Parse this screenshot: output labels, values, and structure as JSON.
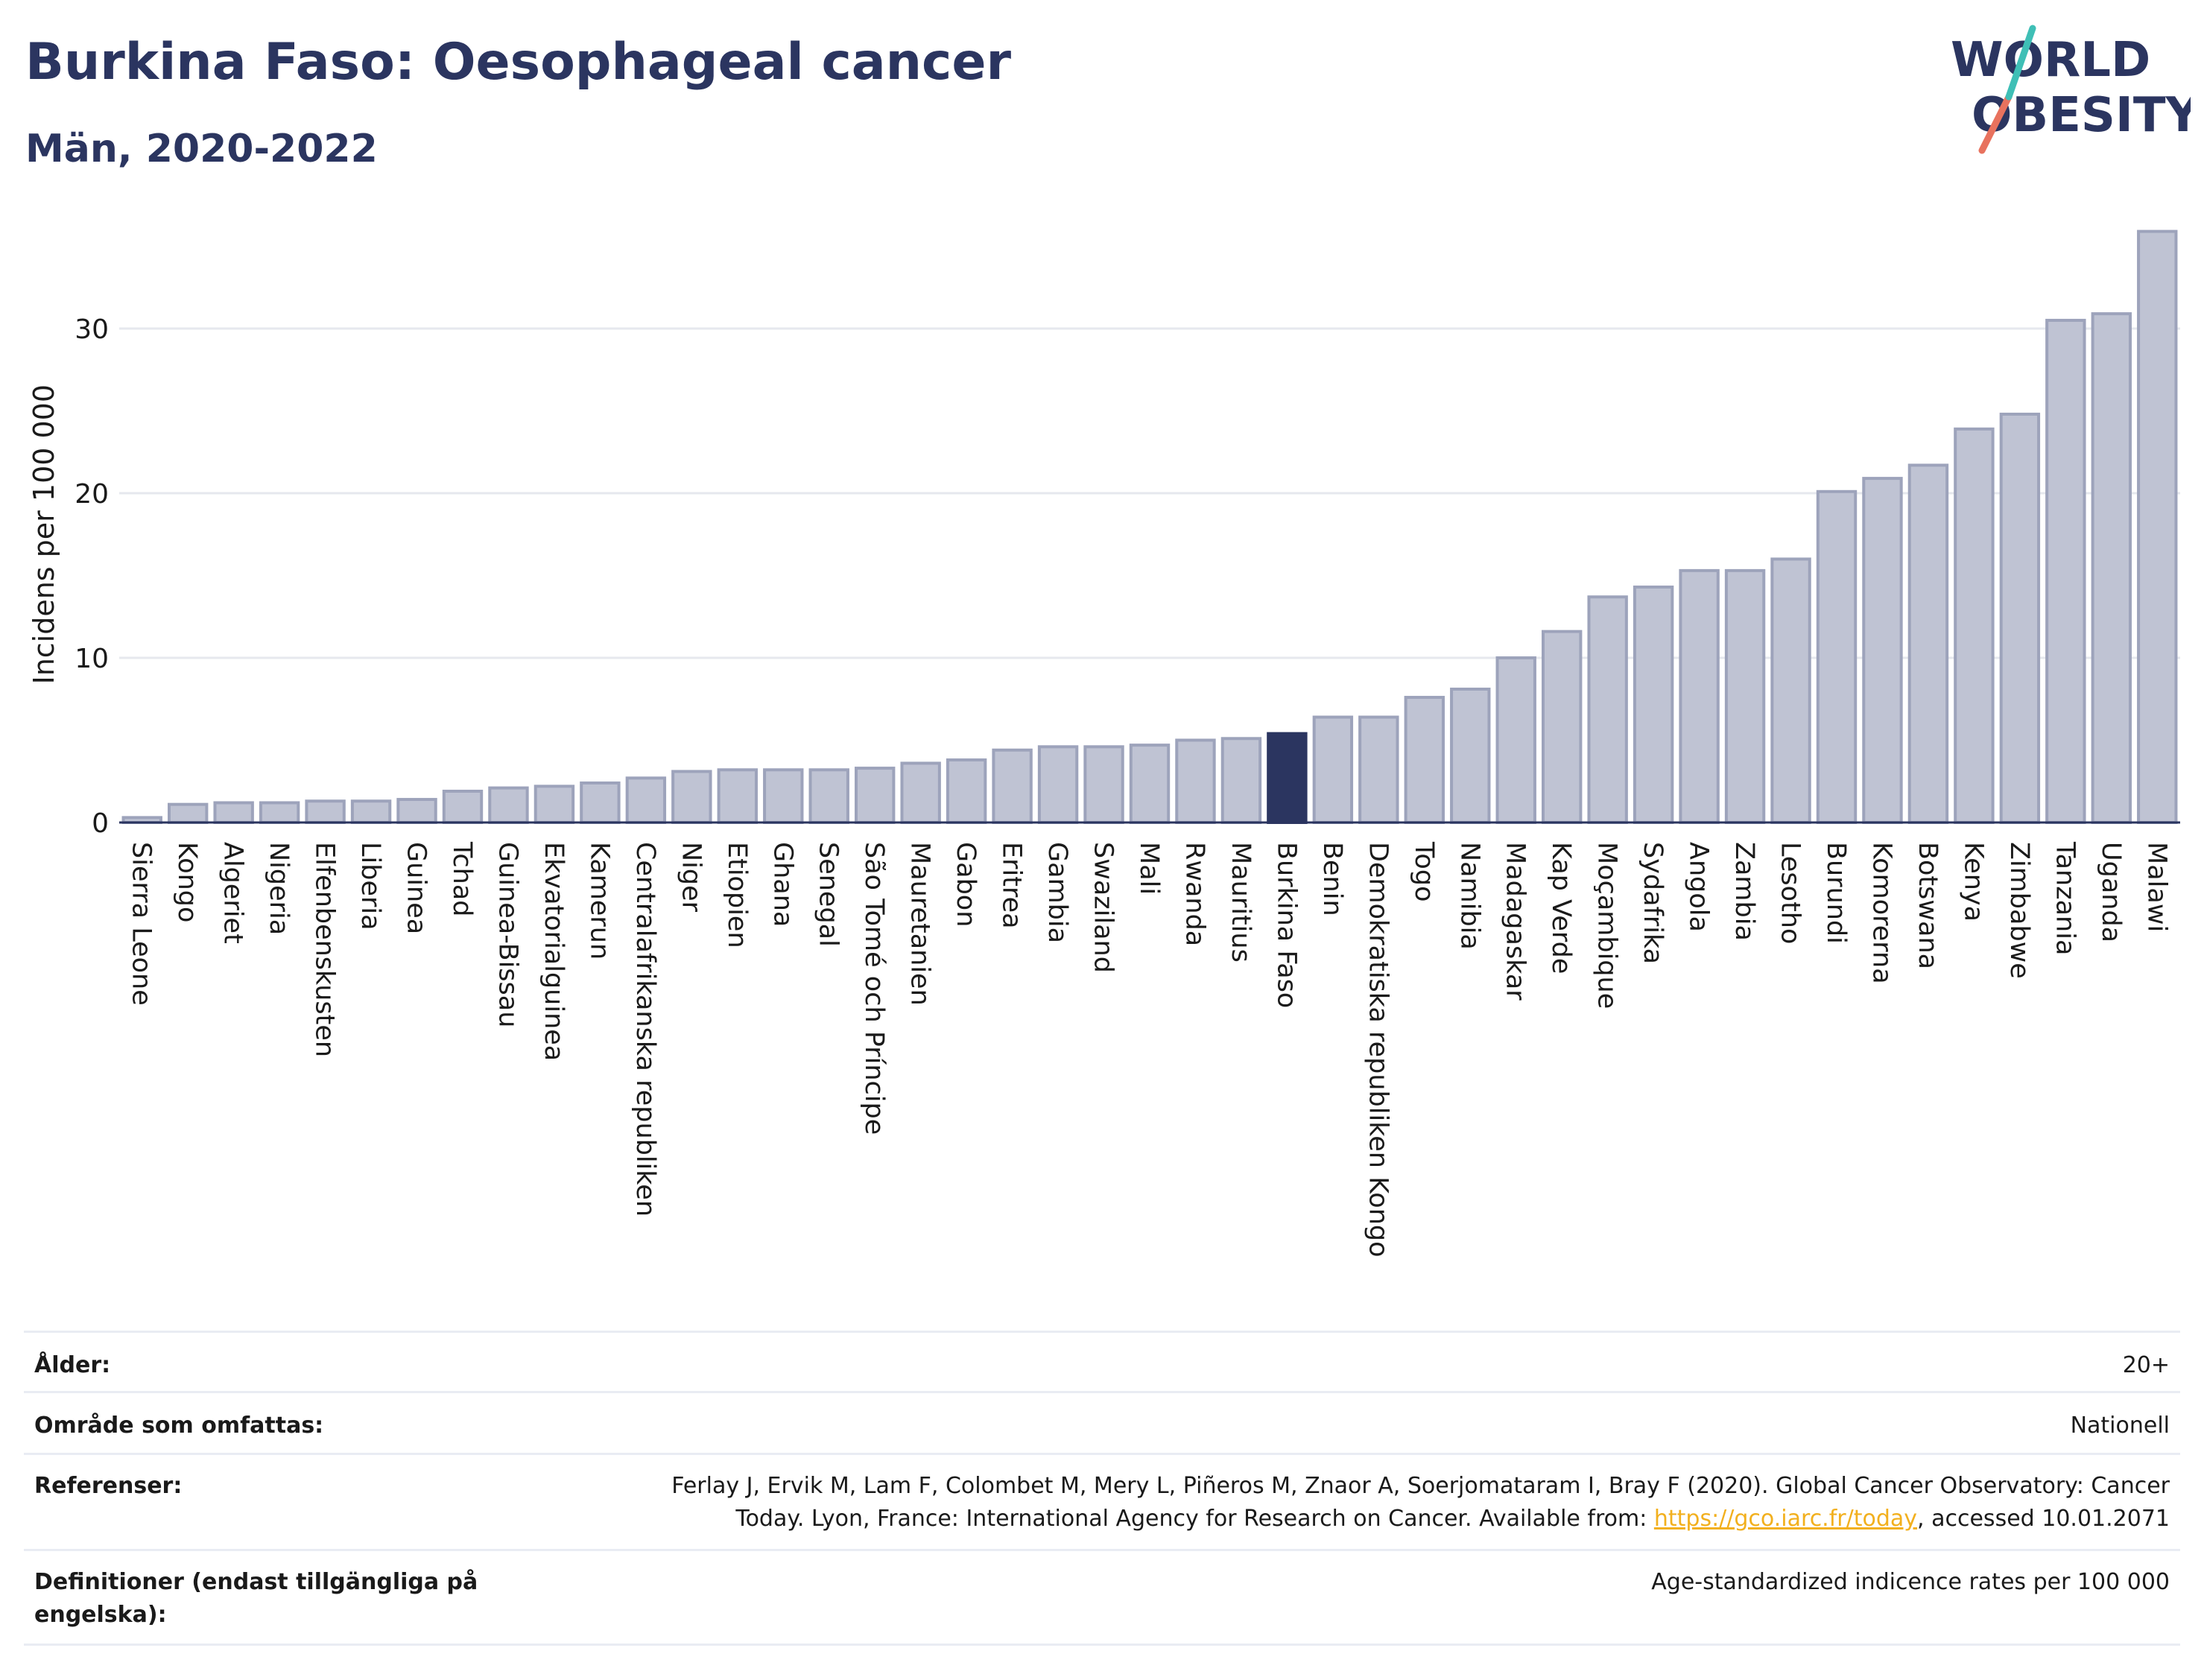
{
  "header": {
    "title": "Burkina Faso: Oesophageal cancer",
    "subtitle": "Män, 2020-2022"
  },
  "logo": {
    "line1": "WORLD",
    "line2": "OBESITY"
  },
  "colors": {
    "title": "#2b3560",
    "bar_default": "#bfc3d3",
    "bar_default_stroke": "#9da3bb",
    "bar_highlight": "#2b3560",
    "grid": "#e6e8ee",
    "logo_teal": "#3fbfb6",
    "logo_coral": "#e8725e",
    "link": "#f2b01e"
  },
  "chart_data": {
    "type": "bar",
    "title": "Burkina Faso: Oesophageal cancer",
    "subtitle": "Män, 2020-2022",
    "xlabel": "",
    "ylabel": "Incidens per 100 000",
    "ylim": [
      0,
      37
    ],
    "yticks": [
      0,
      10,
      20,
      30
    ],
    "grid": true,
    "highlight": "Burkina Faso",
    "categories": [
      "Sierra Leone",
      "Kongo",
      "Algeriet",
      "Nigeria",
      "Elfenbenskusten",
      "Liberia",
      "Guinea",
      "Tchad",
      "Guinea-Bissau",
      "Ekvatorialguinea",
      "Kamerun",
      "Centralafrikanska republiken",
      "Niger",
      "Etiopien",
      "Ghana",
      "Senegal",
      "São Tomé och Príncipe",
      "Mauretanien",
      "Gabon",
      "Eritrea",
      "Gambia",
      "Swaziland",
      "Mali",
      "Rwanda",
      "Mauritius",
      "Burkina Faso",
      "Benin",
      "Demokratiska republiken Kongo",
      "Togo",
      "Namibia",
      "Madagaskar",
      "Kap Verde",
      "Moçambique",
      "Sydafrika",
      "Angola",
      "Zambia",
      "Lesotho",
      "Burundi",
      "Komorerna",
      "Botswana",
      "Kenya",
      "Zimbabwe",
      "Tanzania",
      "Uganda",
      "Malawi"
    ],
    "values": [
      0.3,
      1.1,
      1.2,
      1.2,
      1.3,
      1.3,
      1.4,
      1.9,
      2.1,
      2.2,
      2.4,
      2.7,
      3.1,
      3.2,
      3.2,
      3.2,
      3.3,
      3.6,
      3.8,
      4.4,
      4.6,
      4.6,
      4.7,
      5.0,
      5.1,
      5.4,
      6.4,
      6.4,
      7.6,
      8.1,
      10.0,
      11.6,
      13.7,
      14.3,
      15.3,
      15.3,
      16.0,
      20.1,
      20.9,
      21.7,
      23.9,
      24.8,
      30.5,
      30.9,
      35.9
    ]
  },
  "info": {
    "age_label": "Ålder:",
    "age_value": "20+",
    "area_label": "Område som omfattas:",
    "area_value": "Nationell",
    "ref_label": "Referenser:",
    "ref_text_1": "Ferlay J, Ervik M, Lam F, Colombet M, Mery L, Piñeros M, Znaor A, Soerjomataram I, Bray F (2020). Global Cancer Observatory: Cancer",
    "ref_text_2": "Today. Lyon, France: International Agency for Research on Cancer. Available from: ",
    "ref_link": "https://gco.iarc.fr/today",
    "ref_text_3": ", accessed 10.01.2071",
    "def_label": "Definitioner (endast tillgängliga på engelska):",
    "def_value": "Age-standardized indicence rates per 100 000"
  }
}
